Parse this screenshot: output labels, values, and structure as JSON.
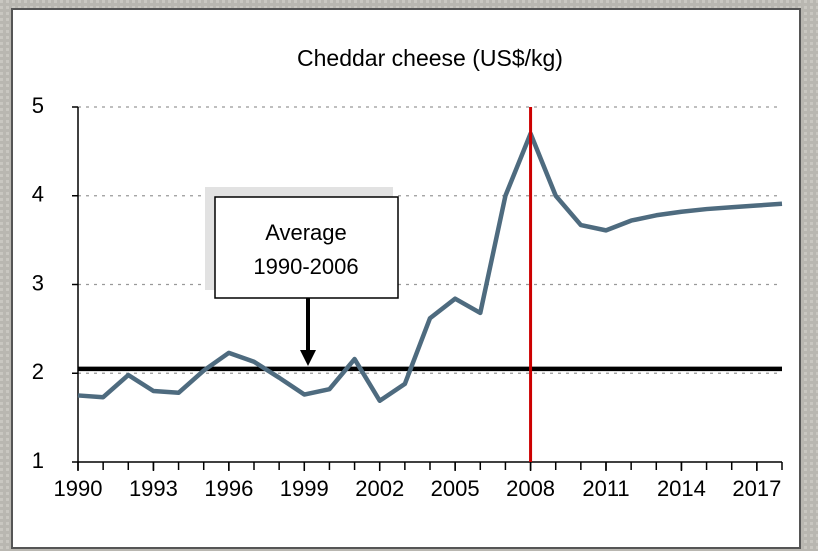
{
  "chart_data": {
    "type": "line",
    "title": "Cheddar cheese (US$/kg)",
    "x": [
      1990,
      1991,
      1992,
      1993,
      1994,
      1995,
      1996,
      1997,
      1998,
      1999,
      2000,
      2001,
      2002,
      2003,
      2004,
      2005,
      2006,
      2007,
      2008,
      2009,
      2010,
      2011,
      2012,
      2013,
      2014,
      2015,
      2016,
      2017,
      2018
    ],
    "series": [
      {
        "color": "#4e6b7f",
        "values": [
          1.75,
          1.73,
          1.98,
          1.8,
          1.78,
          2.03,
          2.23,
          2.13,
          1.95,
          1.76,
          1.82,
          2.16,
          1.69,
          1.88,
          2.62,
          2.84,
          2.68,
          4.0,
          4.7,
          4.0,
          3.67,
          3.61,
          3.72,
          3.78,
          3.82,
          3.85,
          3.87,
          3.89,
          3.91
        ]
      }
    ],
    "xlim": [
      1990,
      2018
    ],
    "xticks": [
      1990,
      1993,
      1996,
      1999,
      2002,
      2005,
      2008,
      2011,
      2014,
      2017
    ],
    "ylim": [
      1,
      5
    ],
    "yticks": [
      1,
      2,
      3,
      4,
      5
    ],
    "grid": true,
    "average": {
      "value": 2.05,
      "color": "#000000"
    },
    "marker_x": {
      "value": 2008,
      "color": "#cc0000"
    },
    "annotation": [
      "Average",
      "1990-2006"
    ]
  }
}
